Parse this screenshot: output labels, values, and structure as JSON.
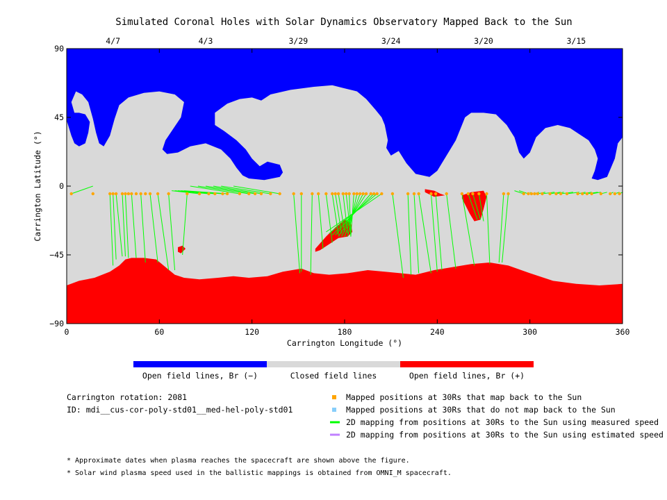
{
  "chart_data": {
    "type": "map",
    "title": "Simulated Coronal Holes with Solar Dynamics Observatory Mapped Back to the Sun",
    "xlabel": "Carrington Longitude (°)",
    "ylabel": "Carrington Latitude (°)",
    "xlim": [
      0,
      360
    ],
    "ylim": [
      -90,
      90
    ],
    "x_ticks": [
      0,
      60,
      120,
      180,
      240,
      300,
      360
    ],
    "y_ticks": [
      90,
      45,
      0,
      -45,
      -90
    ],
    "top_date_ticks": [
      {
        "label": "4/7",
        "lon": 30
      },
      {
        "label": "4/3",
        "lon": 90
      },
      {
        "label": "3/29",
        "lon": 150
      },
      {
        "label": "3/24",
        "lon": 210
      },
      {
        "label": "3/20",
        "lon": 270
      },
      {
        "label": "3/15",
        "lon": 330
      }
    ],
    "colors": {
      "open_negative": "#0000ff",
      "closed": "#d9d9d9",
      "open_positive": "#ff0000",
      "mapped_point": "#ffa500",
      "unmapped_point": "#87cefa",
      "measured_line": "#00ff00",
      "estimated_line": "#c080ff"
    },
    "regions": {
      "north_negative_boundary": [
        [
          0,
          43
        ],
        [
          3,
          33
        ],
        [
          5,
          28
        ],
        [
          8,
          26
        ],
        [
          12,
          28
        ],
        [
          14,
          35
        ],
        [
          15,
          42
        ],
        [
          12,
          47
        ],
        [
          8,
          48
        ],
        [
          5,
          48
        ],
        [
          3,
          55
        ],
        [
          6,
          62
        ],
        [
          10,
          60
        ],
        [
          14,
          55
        ],
        [
          17,
          44
        ],
        [
          19,
          35
        ],
        [
          21,
          28
        ],
        [
          24,
          26
        ],
        [
          28,
          33
        ],
        [
          31,
          44
        ],
        [
          34,
          53
        ],
        [
          40,
          58
        ],
        [
          50,
          61
        ],
        [
          60,
          62
        ],
        [
          70,
          60
        ],
        [
          76,
          55
        ],
        [
          74,
          45
        ],
        [
          68,
          36
        ],
        [
          64,
          30
        ],
        [
          62,
          24
        ],
        [
          65,
          21
        ],
        [
          72,
          22
        ],
        [
          80,
          26
        ],
        [
          90,
          28
        ],
        [
          100,
          24
        ],
        [
          106,
          18
        ],
        [
          110,
          12
        ],
        [
          114,
          7
        ],
        [
          118,
          5
        ],
        [
          128,
          4
        ],
        [
          138,
          6
        ],
        [
          140,
          9
        ],
        [
          138,
          14
        ],
        [
          130,
          16
        ],
        [
          125,
          13
        ],
        [
          120,
          18
        ],
        [
          116,
          24
        ],
        [
          110,
          30
        ],
        [
          102,
          36
        ],
        [
          96,
          40
        ],
        [
          96,
          48
        ],
        [
          104,
          54
        ],
        [
          112,
          57
        ],
        [
          120,
          58
        ],
        [
          126,
          56
        ],
        [
          132,
          60
        ],
        [
          145,
          63
        ],
        [
          160,
          65
        ],
        [
          172,
          66
        ],
        [
          180,
          64
        ],
        [
          188,
          62
        ],
        [
          194,
          57
        ],
        [
          200,
          50
        ],
        [
          204,
          45
        ],
        [
          206,
          40
        ],
        [
          208,
          30
        ],
        [
          207,
          25
        ],
        [
          210,
          20
        ],
        [
          215,
          23
        ],
        [
          220,
          15
        ],
        [
          226,
          8
        ],
        [
          235,
          6
        ],
        [
          240,
          10
        ],
        [
          246,
          20
        ],
        [
          252,
          30
        ],
        [
          256,
          40
        ],
        [
          258,
          45
        ],
        [
          262,
          48
        ],
        [
          270,
          48
        ],
        [
          278,
          47
        ],
        [
          285,
          40
        ],
        [
          290,
          32
        ],
        [
          293,
          22
        ],
        [
          296,
          18
        ],
        [
          300,
          22
        ],
        [
          304,
          32
        ],
        [
          310,
          38
        ],
        [
          318,
          40
        ],
        [
          326,
          38
        ],
        [
          332,
          34
        ],
        [
          338,
          30
        ],
        [
          342,
          24
        ],
        [
          344,
          18
        ],
        [
          342,
          10
        ],
        [
          340,
          5
        ],
        [
          344,
          4
        ],
        [
          350,
          6
        ],
        [
          355,
          18
        ],
        [
          357,
          28
        ],
        [
          360,
          32
        ],
        [
          360,
          90
        ],
        [
          0,
          90
        ]
      ],
      "south_positive_boundary": [
        [
          0,
          -65
        ],
        [
          8,
          -62
        ],
        [
          18,
          -60
        ],
        [
          28,
          -56
        ],
        [
          34,
          -52
        ],
        [
          38,
          -48
        ],
        [
          42,
          -47
        ],
        [
          50,
          -47
        ],
        [
          58,
          -48
        ],
        [
          64,
          -53
        ],
        [
          70,
          -58
        ],
        [
          76,
          -60
        ],
        [
          86,
          -61
        ],
        [
          98,
          -60
        ],
        [
          108,
          -59
        ],
        [
          118,
          -60
        ],
        [
          130,
          -59
        ],
        [
          140,
          -56
        ],
        [
          152,
          -54
        ],
        [
          160,
          -57
        ],
        [
          170,
          -58
        ],
        [
          182,
          -57
        ],
        [
          195,
          -55
        ],
        [
          206,
          -56
        ],
        [
          216,
          -57
        ],
        [
          226,
          -58
        ],
        [
          238,
          -55
        ],
        [
          250,
          -53
        ],
        [
          262,
          -51
        ],
        [
          274,
          -50
        ],
        [
          286,
          -52
        ],
        [
          300,
          -57
        ],
        [
          315,
          -62
        ],
        [
          330,
          -64
        ],
        [
          345,
          -65
        ],
        [
          360,
          -64
        ],
        [
          360,
          -90
        ],
        [
          0,
          -90
        ]
      ],
      "small_positive_patches": [
        [
          [
            161,
            -41
          ],
          [
            168,
            -33
          ],
          [
            174,
            -27
          ],
          [
            180,
            -22
          ],
          [
            184,
            -24
          ],
          [
            185,
            -30
          ],
          [
            182,
            -33
          ],
          [
            176,
            -34
          ],
          [
            170,
            -38
          ],
          [
            164,
            -42
          ],
          [
            161,
            -43
          ]
        ],
        [
          [
            232,
            -2
          ],
          [
            238,
            -3
          ],
          [
            242,
            -5
          ],
          [
            245,
            -6
          ],
          [
            238,
            -7
          ],
          [
            232,
            -4
          ]
        ],
        [
          [
            256,
            -6
          ],
          [
            262,
            -4
          ],
          [
            270,
            -3
          ],
          [
            272,
            -7
          ],
          [
            270,
            -15
          ],
          [
            268,
            -22
          ],
          [
            264,
            -23
          ],
          [
            261,
            -18
          ],
          [
            258,
            -12
          ],
          [
            256,
            -8
          ]
        ],
        [
          [
            72,
            -40
          ],
          [
            75,
            -39
          ],
          [
            77,
            -41
          ],
          [
            74,
            -44
          ],
          [
            72,
            -43
          ]
        ]
      ]
    },
    "mapped_points_lon": [
      3,
      17,
      28,
      30,
      32,
      36,
      38,
      40,
      42,
      45,
      48,
      51,
      54,
      59,
      66,
      78,
      86,
      92,
      96,
      101,
      104,
      112,
      118,
      122,
      126,
      132,
      138,
      147,
      152,
      159,
      163,
      168,
      172,
      174,
      176,
      179,
      181,
      183,
      186,
      188,
      190,
      192,
      194,
      197,
      199,
      201,
      204,
      211,
      221,
      225,
      228,
      236,
      239,
      246,
      256,
      260,
      263,
      267,
      272,
      283,
      286,
      296,
      299,
      301,
      303,
      305,
      308,
      313,
      317,
      320,
      324,
      331,
      334,
      337,
      340,
      346,
      352,
      355,
      358
    ],
    "measured_mapping_lines": [
      [
        3,
        17,
        0,
        -3
      ],
      [
        28,
        30,
        -52,
        -56
      ],
      [
        30,
        32,
        -48,
        -55
      ],
      [
        32,
        36,
        -46,
        -52
      ],
      [
        36,
        38,
        -46,
        -52
      ],
      [
        38,
        40,
        -47,
        -53
      ],
      [
        42,
        45,
        -47,
        -55
      ],
      [
        48,
        51,
        -50,
        -55
      ],
      [
        54,
        59,
        -50,
        -56
      ],
      [
        59,
        66,
        -55,
        -58
      ],
      [
        66,
        70,
        -55,
        -58
      ],
      [
        78,
        75,
        -45,
        -56
      ],
      [
        86,
        68,
        -3,
        -45
      ],
      [
        92,
        70,
        -3,
        -45
      ],
      [
        96,
        72,
        -3,
        -45
      ],
      [
        101,
        74,
        -3,
        -45
      ],
      [
        104,
        76,
        -3,
        -45
      ],
      [
        112,
        80,
        0,
        -3
      ],
      [
        118,
        85,
        0,
        -3
      ],
      [
        122,
        90,
        0,
        -3
      ],
      [
        126,
        95,
        0,
        -3
      ],
      [
        132,
        100,
        0,
        -3
      ],
      [
        138,
        108,
        0,
        -3
      ],
      [
        147,
        151,
        -57,
        -58
      ],
      [
        152,
        152,
        -56,
        -57
      ],
      [
        159,
        158,
        -58,
        -58
      ],
      [
        163,
        166,
        -41,
        -43
      ],
      [
        168,
        172,
        -37,
        -35
      ],
      [
        172,
        176,
        -32,
        -30
      ],
      [
        174,
        178,
        -31,
        -27
      ],
      [
        176,
        180,
        -30,
        -26
      ],
      [
        179,
        182,
        -31,
        -27
      ],
      [
        181,
        184,
        -32,
        -28
      ],
      [
        183,
        184,
        -33,
        -29
      ],
      [
        186,
        184,
        -33,
        -30
      ],
      [
        188,
        182,
        -33,
        -31
      ],
      [
        190,
        180,
        -33,
        -32
      ],
      [
        192,
        178,
        -33,
        -33
      ],
      [
        194,
        176,
        -33,
        -34
      ],
      [
        197,
        174,
        -32,
        -35
      ],
      [
        199,
        172,
        -32,
        -36
      ],
      [
        201,
        170,
        -31,
        -37
      ],
      [
        204,
        168,
        -30,
        -38
      ],
      [
        211,
        218,
        -60,
        -61
      ],
      [
        221,
        223,
        -58,
        -59
      ],
      [
        225,
        228,
        -57,
        -58
      ],
      [
        228,
        236,
        -57,
        -56
      ],
      [
        236,
        240,
        -56,
        -55
      ],
      [
        239,
        243,
        -55,
        -55
      ],
      [
        246,
        252,
        -54,
        -53
      ],
      [
        256,
        264,
        -52,
        -52
      ],
      [
        260,
        266,
        -22,
        -21
      ],
      [
        263,
        268,
        -22,
        -20
      ],
      [
        267,
        270,
        -23,
        -19
      ],
      [
        272,
        274,
        -51,
        -50
      ],
      [
        283,
        280,
        -50,
        -50
      ],
      [
        286,
        282,
        -50,
        -50
      ],
      [
        296,
        290,
        -3,
        -4
      ],
      [
        299,
        293,
        -3,
        -4
      ],
      [
        301,
        300,
        -4,
        -4
      ],
      [
        303,
        306,
        -4,
        -3
      ],
      [
        305,
        310,
        -4,
        -3
      ],
      [
        308,
        316,
        -4,
        -2
      ],
      [
        313,
        320,
        -4,
        -2
      ],
      [
        317,
        322,
        -4,
        -2
      ],
      [
        320,
        328,
        -4,
        -2
      ],
      [
        324,
        332,
        -4,
        -1
      ],
      [
        331,
        336,
        -4,
        -1
      ],
      [
        334,
        340,
        -4,
        -1
      ],
      [
        337,
        344,
        -4,
        -1
      ],
      [
        340,
        346,
        -4,
        0
      ],
      [
        346,
        350,
        -4,
        0
      ],
      [
        352,
        354,
        -4,
        0
      ],
      [
        355,
        358,
        -4,
        0
      ],
      [
        358,
        360,
        -4,
        0
      ]
    ]
  },
  "colorbar": {
    "labels": [
      "Open field lines, Br (−)",
      "Closed field lines",
      "Open field lines, Br (+)"
    ],
    "segment_colors": [
      "#0000ff",
      "#d9d9d9",
      "#ff0000"
    ]
  },
  "info": {
    "rotation": "Carrington rotation: 2081",
    "id": "ID: mdi__cus-cor-poly-std01__med-hel-poly-std01"
  },
  "legend": [
    {
      "label": "Mapped positions at 30Rs that map back to the Sun",
      "color": "#ffa500",
      "kind": "square"
    },
    {
      "label": "Mapped positions at 30Rs that do not map back to the Sun",
      "color": "#87cefa",
      "kind": "square"
    },
    {
      "label": "2D mapping from positions at 30Rs to the Sun using measured speed",
      "color": "#00ff00",
      "kind": "line"
    },
    {
      "label": "2D mapping from positions at 30Rs to the Sun using estimated speed",
      "color": "#c080ff",
      "kind": "line"
    }
  ],
  "footnotes": [
    "* Approximate dates when plasma reaches the spacecraft are shown above the figure.",
    "* Solar wind plasma speed used in the ballistic mappings is obtained from OMNI_M spacecraft."
  ]
}
